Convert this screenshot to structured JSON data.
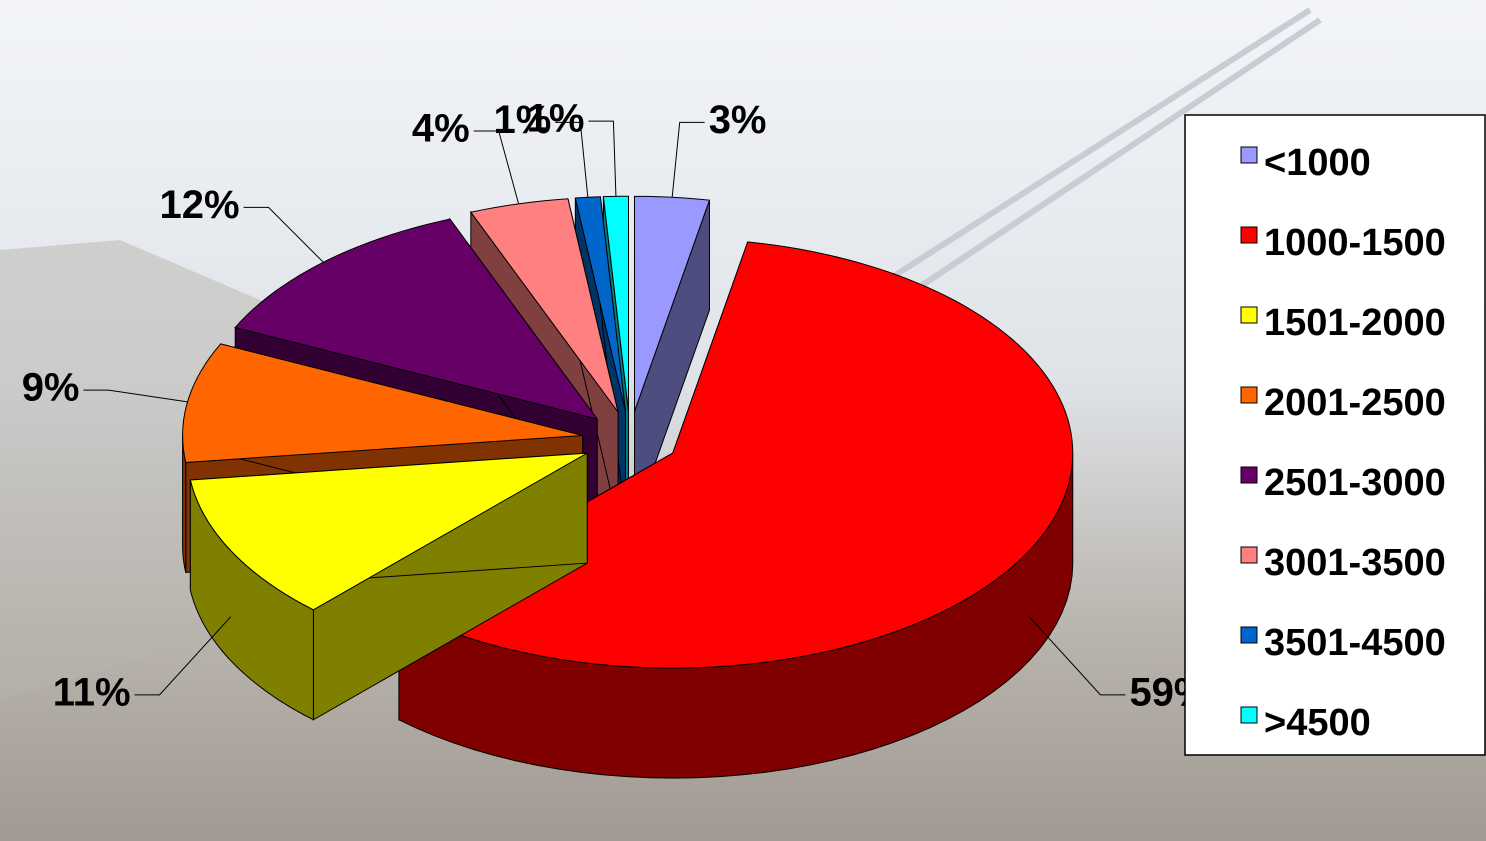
{
  "chart_data": {
    "type": "pie3d",
    "categories": [
      "<1000",
      "1000-1500",
      "1501-2000",
      "2001-2500",
      "2501-3000",
      "3001-3500",
      "3501-4500",
      ">4500"
    ],
    "values": [
      3,
      59,
      11,
      9,
      12,
      4,
      1,
      1
    ],
    "value_labels": [
      "3%",
      "59%",
      "11%",
      "9%",
      "12%",
      "4%",
      "1%",
      "1%"
    ],
    "colors": [
      "#9999ff",
      "#ff0000",
      "#ffff00",
      "#ff6600",
      "#660066",
      "#ff8080",
      "#0066cc",
      "#00ffff"
    ],
    "legend": "right"
  }
}
